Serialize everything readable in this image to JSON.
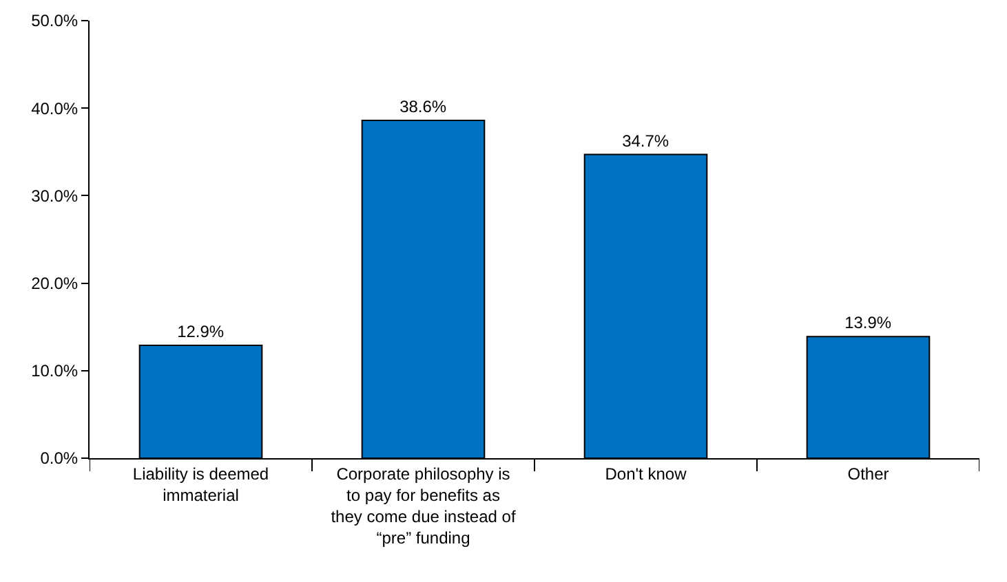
{
  "chart_data": {
    "type": "bar",
    "categories": [
      "Liability is deemed immaterial",
      "Corporate philosophy is to pay for benefits as they come due instead of “pre” funding",
      "Don't know",
      "Other"
    ],
    "values": [
      12.9,
      38.6,
      34.7,
      13.9
    ],
    "value_labels": [
      "12.9%",
      "38.6%",
      "34.7%",
      "13.9%"
    ],
    "color": "#0070c0",
    "ylim": [
      0,
      50
    ],
    "yticks": [
      {
        "value": 0,
        "label": "0.0%"
      },
      {
        "value": 10,
        "label": "10.0%"
      },
      {
        "value": 20,
        "label": "20.0%"
      },
      {
        "value": 30,
        "label": "30.0%"
      },
      {
        "value": 40,
        "label": "40.0%"
      },
      {
        "value": 50,
        "label": "50.0%"
      }
    ],
    "grid": false
  }
}
